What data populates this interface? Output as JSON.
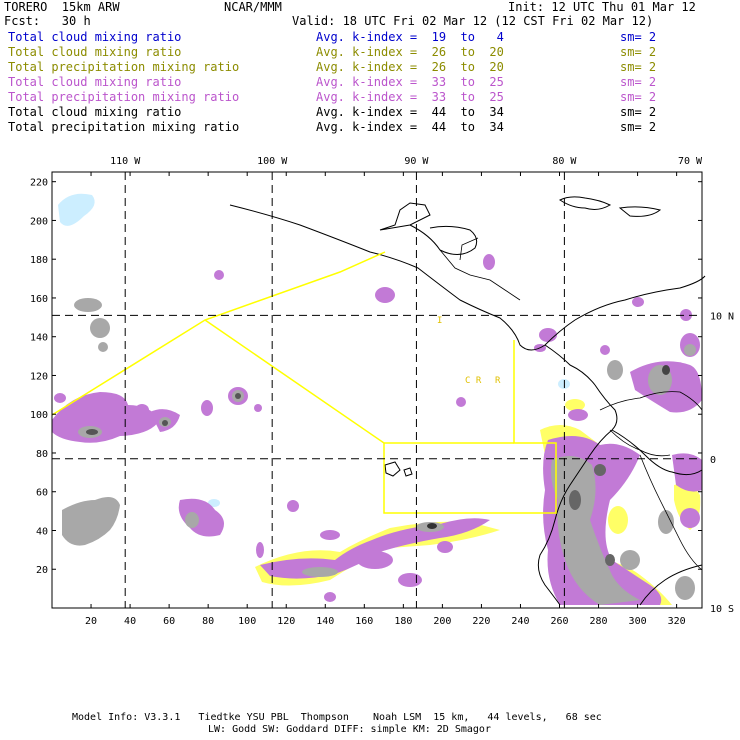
{
  "header": {
    "model": "TORERO  15km ARW",
    "org": "NCAR/MMM",
    "init": "Init: 12 UTC Thu 01 Mar 12",
    "fcst": "Fcst:   30 h",
    "valid": "Valid: 18 UTC Fri 02 Mar 12 (12 CST Fri 02 Mar 12)"
  },
  "legend": [
    {
      "field": "Total cloud mixing ratio",
      "kindex": "Avg. k-index =  19  to   4",
      "sm": "sm= 2",
      "color": "#0000cc"
    },
    {
      "field": "Total cloud mixing ratio",
      "kindex": "Avg. k-index =  26  to  20",
      "sm": "sm= 2",
      "color": "#8c8c00"
    },
    {
      "field": "Total precipitation mixing ratio",
      "kindex": "Avg. k-index =  26  to  20",
      "sm": "sm= 2",
      "color": "#8c8c00"
    },
    {
      "field": "Total cloud mixing ratio",
      "kindex": "Avg. k-index =  33  to  25",
      "sm": "sm= 2",
      "color": "#bb55cc"
    },
    {
      "field": "Total precipitation mixing ratio",
      "kindex": "Avg. k-index =  33  to  25",
      "sm": "sm= 2",
      "color": "#bb55cc"
    },
    {
      "field": "Total cloud mixing ratio",
      "kindex": "Avg. k-index =  44  to  34",
      "sm": "sm= 2",
      "color": "#000000"
    },
    {
      "field": "Total precipitation mixing ratio",
      "kindex": "Avg. k-index =  44  to  34",
      "sm": "sm= 2",
      "color": "#000000"
    }
  ],
  "footer": {
    "line1": "Model Info: V3.3.1   Tiedtke YSU PBL  Thompson    Noah LSM  15 km,   44 levels,   68 sec",
    "line2": "LW: Godd SW: Goddard DIFF: simple KM: 2D Smagor"
  },
  "colors": {
    "purple": "#c27ad6",
    "gray": "#a8a8a8",
    "darkgray": "#555555",
    "yellow": "#ffff66",
    "lightblue": "#cceeff",
    "boundary": "#ffff00"
  },
  "chart_data": {
    "type": "heatmap",
    "xlim": [
      0,
      333
    ],
    "ylim": [
      0,
      225
    ],
    "x_ticks": [
      20,
      40,
      60,
      80,
      100,
      120,
      140,
      160,
      180,
      200,
      220,
      240,
      260,
      280,
      300,
      320
    ],
    "y_ticks": [
      20,
      40,
      60,
      80,
      100,
      120,
      140,
      160,
      180,
      200,
      220
    ],
    "lon_labels": [
      {
        "label": "110 W",
        "x": 37.5
      },
      {
        "label": "100 W",
        "x": 112.8
      },
      {
        "label": "90 W",
        "x": 186.7
      },
      {
        "label": "80 W",
        "x": 262.5
      },
      {
        "label": "70 W",
        "x": 338
      }
    ],
    "lat_labels": [
      {
        "label": "10 N",
        "y": 151
      },
      {
        "label": "0",
        "y": 77
      },
      {
        "label": "10 S",
        "y": 0
      }
    ],
    "grid_lines": {
      "x": [
        37.5,
        112.8,
        186.7,
        262.5
      ],
      "y": [
        151,
        77
      ]
    }
  }
}
